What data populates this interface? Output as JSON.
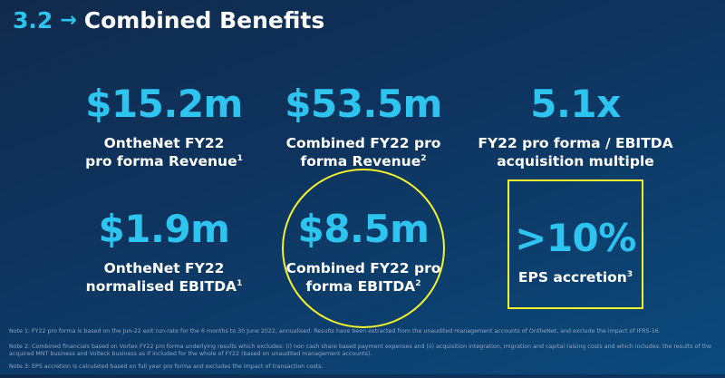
{
  "header": {
    "section_number": "3.2",
    "arrow": "→",
    "title": "Combined Benefits"
  },
  "metrics": [
    {
      "value": "$15.2m",
      "label_line1": "OntheNet FY22",
      "label_line2": "pro forma Revenue",
      "footnote": "1"
    },
    {
      "value": "$53.5m",
      "label_line1": "Combined FY22 pro",
      "label_line2": "forma Revenue",
      "footnote": "2"
    },
    {
      "value": "5.1x",
      "label_line1": "FY22 pro forma / EBITDA",
      "label_line2": "acquisition multiple",
      "footnote": ""
    },
    {
      "value": "$1.9m",
      "label_line1": "OntheNet FY22",
      "label_line2": "normalised EBITDA",
      "footnote": "1"
    },
    {
      "value": "$8.5m",
      "label_line1": "Combined FY22 pro",
      "label_line2": "forma EBITDA",
      "footnote": "2"
    },
    {
      "value": ">10%",
      "label_line1": "EPS accretion",
      "label_line2": "",
      "footnote": "3"
    }
  ],
  "notes": [
    "Note 1: FY22 pro forma is based on the Jun-22 exit run-rate for the 6 months to 30 June 2022, annualised. Results have been extracted from the unaudited management accounts of OntheNet, and exclude the impact of IFRS-16.",
    "Note 2: Combined financials based on Vortex FY22 pro forma underlying results which excludes: (i) non cash share based payment expenses and (ii) acquisition integration, migration and capital raising costs and which includes: the results of the acquired MNT business and Volteck business as if included for the whole of FY22 (based on unaudited management accounts).",
    "Note 3: EPS accretion is calculated based on full year pro forma and excludes the impact of transaction costs."
  ],
  "colors": {
    "accent": "#2ec4f0",
    "highlight": "#f2f22d",
    "background_start": "#102a4c",
    "background_end": "#0b4a7d"
  }
}
